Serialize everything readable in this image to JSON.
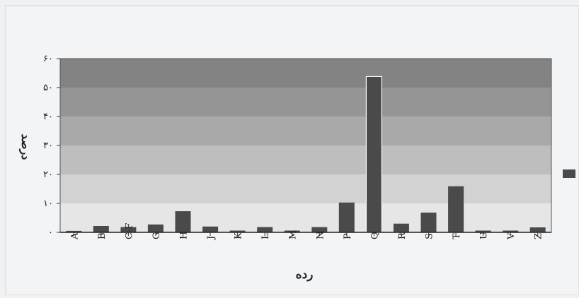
{
  "chart_data": {
    "type": "bar",
    "title": "",
    "xlabel": "رده",
    "ylabel": "درصد",
    "ylim": [
      0,
      60
    ],
    "yticks": [
      {
        "value": 0,
        "label": "۰"
      },
      {
        "value": 10,
        "label": "۱۰"
      },
      {
        "value": 20,
        "label": "۲۰"
      },
      {
        "value": 30,
        "label": "۳۰"
      },
      {
        "value": 40,
        "label": "۴۰"
      },
      {
        "value": 50,
        "label": "۵۰"
      },
      {
        "value": 60,
        "label": "۶۰"
      }
    ],
    "categories": [
      "A",
      "B",
      "C-F",
      "G",
      "H",
      "J",
      "K",
      "L",
      "M",
      "N",
      "P",
      "Q",
      "R",
      "S",
      "T",
      "U",
      "V",
      "Z"
    ],
    "values": [
      0.5,
      2.2,
      1.8,
      2.7,
      7.3,
      2.0,
      0.6,
      1.8,
      0.6,
      1.8,
      10.3,
      53.8,
      3.0,
      6.8,
      15.9,
      0.6,
      0.6,
      1.7
    ],
    "bar_color": "#4a4a4a",
    "highlight_category": "Q",
    "legend": {
      "placement": "right",
      "swatch_color": "#4a4a4a"
    },
    "band_colors": [
      "#e6e6e6",
      "#d2d2d2",
      "#bebebe",
      "#a9a9a9",
      "#959595",
      "#838383"
    ],
    "grid": false
  }
}
